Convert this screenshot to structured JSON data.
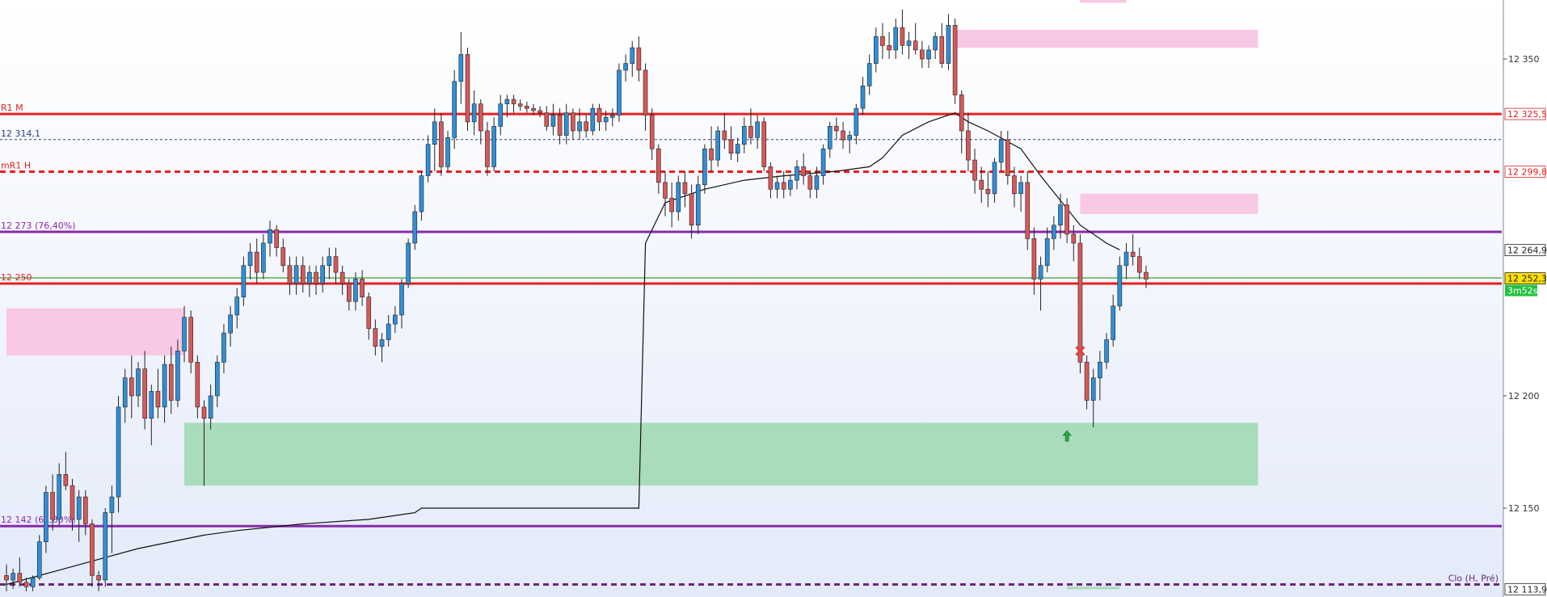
{
  "chart_data": {
    "type": "candlestick",
    "title": "",
    "xlabel": "",
    "ylabel": "",
    "ylim": [
      12113.9,
      12378
    ],
    "y_ticks": [
      {
        "value": 12350,
        "label": "12 350"
      },
      {
        "value": 12200,
        "label": "12 200"
      },
      {
        "value": 12150,
        "label": "12 150"
      }
    ],
    "price_tags": [
      {
        "value": 12325.5,
        "label": "12 325,5",
        "color": "#e02020",
        "bg": "#ffffff"
      },
      {
        "value": 12299.8,
        "label": "12 299,8",
        "color": "#e02020",
        "bg": "#ffffff"
      },
      {
        "value": 12264.9,
        "label": "12 264,9",
        "color": "#222222",
        "bg": "#ffffff"
      },
      {
        "value": 12252.3,
        "label": "12 252,3",
        "color": "#222222",
        "bg": "#ffe000"
      },
      {
        "value": 12113.9,
        "label": "12 113,9",
        "color": "#222222",
        "bg": "#ffffff"
      }
    ],
    "countdown": {
      "label": "3m52s",
      "bg": "#22c040"
    },
    "levels": [
      {
        "value": 12325.5,
        "label": "R1 M",
        "color": "#e82020",
        "style": "solid",
        "width": 3
      },
      {
        "value": 12314.1,
        "label": "12 314,1",
        "color": "#2a3a8a",
        "style": "dotted",
        "width": 1
      },
      {
        "value": 12299.8,
        "label": "mR1 H",
        "color": "#e82020",
        "style": "dashed",
        "width": 3
      },
      {
        "value": 12273,
        "label": "12 273 (76,40%)",
        "color": "#8a2aa8",
        "style": "solid",
        "width": 3
      },
      {
        "value": 12252.5,
        "label": "",
        "color": "#80c080",
        "style": "solid",
        "width": 2
      },
      {
        "value": 12250,
        "label": "12 250",
        "color": "#e82020",
        "style": "solid",
        "width": 3
      },
      {
        "value": 12142,
        "label": "12 142 (61,80%)",
        "color": "#8a2aa8",
        "style": "solid",
        "width": 3
      },
      {
        "value": 12116,
        "label": "Clo (H, Pré)",
        "color": "#6a2a7a",
        "style": "dashed",
        "width": 3
      }
    ],
    "zones": [
      {
        "type": "supply",
        "color": "#f8c8e4",
        "x_from": 144,
        "x_to": 190,
        "y_from": 12355,
        "y_to": 12363
      },
      {
        "type": "supply",
        "color": "#f8c8e4",
        "x_from": 163,
        "x_to": 190,
        "y_from": 12281,
        "y_to": 12290
      },
      {
        "type": "demand",
        "color": "#f8c8e4",
        "x_from": 0,
        "x_to": 27,
        "y_from": 12218,
        "y_to": 12239
      },
      {
        "type": "demand",
        "color": "#a8dcba",
        "x_from": 27,
        "x_to": 190,
        "y_from": 12160,
        "y_to": 12188
      },
      {
        "type": "label-bg",
        "color": "#f8c8e4",
        "x_from": 163,
        "x_to": 170,
        "y_from": 12375,
        "y_to": 12378
      },
      {
        "type": "label-bg",
        "color": "#a8dcba",
        "x_from": 161,
        "x_to": 169,
        "y_from": 12113.9,
        "y_to": 12115
      }
    ],
    "candles": [
      [
        12120,
        12125,
        12113,
        12118
      ],
      [
        12118,
        12123,
        12114,
        12121
      ],
      [
        12121,
        12128,
        12115,
        12117
      ],
      [
        12117,
        12119,
        12113,
        12115
      ],
      [
        12115,
        12120,
        12113,
        12119
      ],
      [
        12119,
        12138,
        12118,
        12135
      ],
      [
        12135,
        12160,
        12130,
        12157
      ],
      [
        12157,
        12165,
        12140,
        12145
      ],
      [
        12145,
        12170,
        12142,
        12165
      ],
      [
        12165,
        12175,
        12158,
        12160
      ],
      [
        12160,
        12163,
        12140,
        12145
      ],
      [
        12145,
        12158,
        12135,
        12155
      ],
      [
        12155,
        12158,
        12138,
        12143
      ],
      [
        12143,
        12145,
        12115,
        12120
      ],
      [
        12120,
        12122,
        12113,
        12118
      ],
      [
        12118,
        12150,
        12115,
        12148
      ],
      [
        12148,
        12160,
        12130,
        12155
      ],
      [
        12155,
        12200,
        12148,
        12195
      ],
      [
        12195,
        12212,
        12188,
        12208
      ],
      [
        12208,
        12218,
        12190,
        12200
      ],
      [
        12200,
        12215,
        12195,
        12212
      ],
      [
        12212,
        12220,
        12185,
        12190
      ],
      [
        12190,
        12205,
        12178,
        12202
      ],
      [
        12202,
        12212,
        12190,
        12195
      ],
      [
        12195,
        12218,
        12188,
        12214
      ],
      [
        12214,
        12222,
        12192,
        12198
      ],
      [
        12198,
        12225,
        12195,
        12220
      ],
      [
        12220,
        12240,
        12215,
        12235
      ],
      [
        12235,
        12238,
        12210,
        12215
      ],
      [
        12215,
        12218,
        12190,
        12195
      ],
      [
        12195,
        12198,
        12160,
        12190
      ],
      [
        12190,
        12205,
        12185,
        12200
      ],
      [
        12200,
        12218,
        12195,
        12215
      ],
      [
        12215,
        12232,
        12210,
        12228
      ],
      [
        12228,
        12240,
        12222,
        12236
      ],
      [
        12236,
        12248,
        12230,
        12244
      ],
      [
        12244,
        12262,
        12240,
        12258
      ],
      [
        12258,
        12268,
        12252,
        12264
      ],
      [
        12264,
        12270,
        12250,
        12255
      ],
      [
        12255,
        12272,
        12252,
        12268
      ],
      [
        12268,
        12278,
        12262,
        12274
      ],
      [
        12274,
        12276,
        12262,
        12266
      ],
      [
        12266,
        12270,
        12255,
        12258
      ],
      [
        12258,
        12262,
        12245,
        12250
      ],
      [
        12250,
        12262,
        12245,
        12258
      ],
      [
        12258,
        12262,
        12246,
        12250
      ],
      [
        12250,
        12258,
        12244,
        12255
      ],
      [
        12255,
        12258,
        12245,
        12250
      ],
      [
        12250,
        12262,
        12246,
        12258
      ],
      [
        12258,
        12266,
        12252,
        12262
      ],
      [
        12262,
        12266,
        12250,
        12255
      ],
      [
        12255,
        12258,
        12245,
        12250
      ],
      [
        12250,
        12252,
        12238,
        12242
      ],
      [
        12242,
        12255,
        12238,
        12252
      ],
      [
        12252,
        12256,
        12240,
        12244
      ],
      [
        12244,
        12246,
        12225,
        12230
      ],
      [
        12230,
        12234,
        12218,
        12222
      ],
      [
        12222,
        12228,
        12215,
        12225
      ],
      [
        12225,
        12236,
        12222,
        12232
      ],
      [
        12232,
        12240,
        12228,
        12236
      ],
      [
        12236,
        12252,
        12230,
        12250
      ],
      [
        12250,
        12270,
        12248,
        12268
      ],
      [
        12268,
        12285,
        12265,
        12282
      ],
      [
        12282,
        12300,
        12278,
        12298
      ],
      [
        12298,
        12316,
        12295,
        12312
      ],
      [
        12312,
        12328,
        12300,
        12322
      ],
      [
        12322,
        12326,
        12298,
        12302
      ],
      [
        12302,
        12318,
        12300,
        12315
      ],
      [
        12315,
        12345,
        12310,
        12340
      ],
      [
        12340,
        12362,
        12330,
        12352
      ],
      [
        12352,
        12355,
        12318,
        12322
      ],
      [
        12322,
        12336,
        12316,
        12330
      ],
      [
        12330,
        12332,
        12312,
        12318
      ],
      [
        12318,
        12322,
        12298,
        12302
      ],
      [
        12302,
        12324,
        12300,
        12320
      ],
      [
        12320,
        12334,
        12316,
        12330
      ],
      [
        12330,
        12334,
        12324,
        12332
      ],
      [
        12332,
        12334,
        12326,
        12330
      ],
      [
        12330,
        12332,
        12327,
        12329
      ],
      [
        12329,
        12331,
        12326,
        12328
      ],
      [
        12328,
        12330,
        12325,
        12327
      ],
      [
        12327,
        12329,
        12324,
        12326
      ],
      [
        12326,
        12329,
        12318,
        12320
      ],
      [
        12320,
        12330,
        12316,
        12325
      ],
      [
        12325,
        12328,
        12312,
        12316
      ],
      [
        12316,
        12330,
        12312,
        12326
      ],
      [
        12326,
        12328,
        12314,
        12318
      ],
      [
        12318,
        12328,
        12314,
        12322
      ],
      [
        12322,
        12325,
        12315,
        12318
      ],
      [
        12318,
        12330,
        12316,
        12328
      ],
      [
        12328,
        12330,
        12318,
        12322
      ],
      [
        12322,
        12327,
        12318,
        12324
      ],
      [
        12324,
        12328,
        12320,
        12325
      ],
      [
        12325,
        12348,
        12322,
        12345
      ],
      [
        12345,
        12352,
        12340,
        12348
      ],
      [
        12348,
        12358,
        12342,
        12355
      ],
      [
        12355,
        12360,
        12340,
        12345
      ],
      [
        12345,
        12348,
        12318,
        12325
      ],
      [
        12325,
        12328,
        12305,
        12310
      ],
      [
        12310,
        12312,
        12290,
        12295
      ],
      [
        12295,
        12300,
        12280,
        12288
      ],
      [
        12288,
        12295,
        12275,
        12282
      ],
      [
        12282,
        12298,
        12278,
        12295
      ],
      [
        12295,
        12300,
        12284,
        12290
      ],
      [
        12290,
        12294,
        12270,
        12276
      ],
      [
        12276,
        12298,
        12272,
        12294
      ],
      [
        12294,
        12312,
        12290,
        12310
      ],
      [
        12310,
        12320,
        12300,
        12305
      ],
      [
        12305,
        12320,
        12302,
        12318
      ],
      [
        12318,
        12326,
        12310,
        12314
      ],
      [
        12314,
        12320,
        12305,
        12308
      ],
      [
        12308,
        12315,
        12304,
        12312
      ],
      [
        12312,
        12324,
        12308,
        12320
      ],
      [
        12320,
        12328,
        12312,
        12315
      ],
      [
        12315,
        12325,
        12310,
        12322
      ],
      [
        12322,
        12324,
        12300,
        12302
      ],
      [
        12302,
        12304,
        12288,
        12292
      ],
      [
        12292,
        12298,
        12288,
        12295
      ],
      [
        12295,
        12300,
        12288,
        12292
      ],
      [
        12292,
        12298,
        12289,
        12296
      ],
      [
        12296,
        12305,
        12292,
        12302
      ],
      [
        12302,
        12308,
        12294,
        12298
      ],
      [
        12298,
        12300,
        12288,
        12292
      ],
      [
        12292,
        12302,
        12288,
        12298
      ],
      [
        12298,
        12312,
        12294,
        12310
      ],
      [
        12310,
        12322,
        12306,
        12320
      ],
      [
        12320,
        12324,
        12314,
        12318
      ],
      [
        12318,
        12322,
        12310,
        12314
      ],
      [
        12314,
        12318,
        12308,
        12316
      ],
      [
        12316,
        12330,
        12312,
        12328
      ],
      [
        12328,
        12342,
        12325,
        12338
      ],
      [
        12338,
        12352,
        12334,
        12348
      ],
      [
        12348,
        12364,
        12344,
        12360
      ],
      [
        12360,
        12366,
        12350,
        12356
      ],
      [
        12356,
        12362,
        12350,
        12354
      ],
      [
        12354,
        12368,
        12350,
        12364
      ],
      [
        12364,
        12372,
        12352,
        12356
      ],
      [
        12356,
        12362,
        12350,
        12358
      ],
      [
        12358,
        12366,
        12352,
        12354
      ],
      [
        12354,
        12358,
        12346,
        12350
      ],
      [
        12350,
        12356,
        12346,
        12354
      ],
      [
        12354,
        12362,
        12350,
        12360
      ],
      [
        12360,
        12366,
        12346,
        12348
      ],
      [
        12348,
        12370,
        12345,
        12365
      ],
      [
        12365,
        12368,
        12330,
        12334
      ],
      [
        12334,
        12336,
        12308,
        12318
      ],
      [
        12318,
        12326,
        12300,
        12305
      ],
      [
        12305,
        12310,
        12290,
        12296
      ],
      [
        12296,
        12302,
        12286,
        12292
      ],
      [
        12292,
        12300,
        12284,
        12290
      ],
      [
        12290,
        12306,
        12286,
        12304
      ],
      [
        12304,
        12318,
        12300,
        12314
      ],
      [
        12314,
        12318,
        12294,
        12298
      ],
      [
        12298,
        12302,
        12284,
        12290
      ],
      [
        12290,
        12298,
        12282,
        12295
      ],
      [
        12295,
        12300,
        12265,
        12270
      ],
      [
        12270,
        12275,
        12245,
        12252
      ],
      [
        12252,
        12262,
        12238,
        12258
      ],
      [
        12258,
        12275,
        12255,
        12270
      ],
      [
        12270,
        12280,
        12265,
        12276
      ],
      [
        12276,
        12290,
        12270,
        12285
      ],
      [
        12285,
        12288,
        12268,
        12272
      ],
      [
        12272,
        12276,
        12260,
        12268
      ],
      [
        12268,
        12272,
        12210,
        12215
      ],
      [
        12215,
        12218,
        12194,
        12198
      ],
      [
        12198,
        12212,
        12186,
        12208
      ],
      [
        12208,
        12220,
        12198,
        12215
      ],
      [
        12215,
        12228,
        12212,
        12225
      ],
      [
        12225,
        12245,
        12222,
        12240
      ],
      [
        12240,
        12262,
        12238,
        12258
      ],
      [
        12258,
        12268,
        12252,
        12264
      ],
      [
        12264,
        12272,
        12258,
        12262
      ],
      [
        12262,
        12266,
        12252,
        12255
      ],
      [
        12255,
        12258,
        12248,
        12252
      ]
    ],
    "average_line": [
      [
        0,
        12116
      ],
      [
        10,
        12124
      ],
      [
        20,
        12132
      ],
      [
        30,
        12138
      ],
      [
        35,
        12140
      ],
      [
        45,
        12143
      ],
      [
        55,
        12145
      ],
      [
        62,
        12148
      ],
      [
        63,
        12150
      ],
      [
        96,
        12150
      ],
      [
        97,
        12268
      ],
      [
        100,
        12286
      ],
      [
        106,
        12292
      ],
      [
        112,
        12296
      ],
      [
        118,
        12298
      ],
      [
        126,
        12300
      ],
      [
        131,
        12302
      ],
      [
        133,
        12306
      ],
      [
        136,
        12316
      ],
      [
        140,
        12322
      ],
      [
        144,
        12326
      ],
      [
        146,
        12322
      ],
      [
        149,
        12318
      ],
      [
        154,
        12310
      ],
      [
        157,
        12298
      ],
      [
        160,
        12287
      ],
      [
        163,
        12276
      ],
      [
        167,
        12268
      ],
      [
        169,
        12265
      ]
    ],
    "markers": [
      {
        "type": "buy-arrow",
        "candle": 161,
        "value": 12182,
        "color": "#22aa44"
      },
      {
        "type": "cross",
        "candle": 163,
        "value": 12220,
        "color": "#e04040"
      }
    ]
  }
}
